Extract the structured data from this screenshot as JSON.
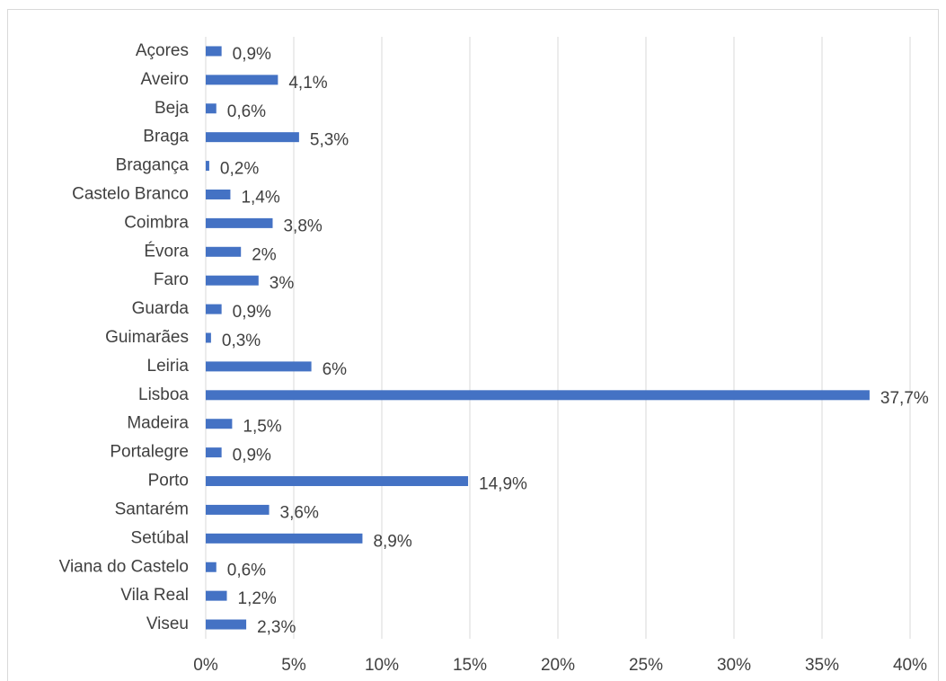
{
  "chart_data": {
    "type": "bar",
    "orientation": "horizontal",
    "categories": [
      "Açores",
      "Aveiro",
      "Beja",
      "Braga",
      "Bragança",
      "Castelo Branco",
      "Coimbra",
      "Évora",
      "Faro",
      "Guarda",
      "Guimarães",
      "Leiria",
      "Lisboa",
      "Madeira",
      "Portalegre",
      "Porto",
      "Santarém",
      "Setúbal",
      "Viana do Castelo",
      "Vila Real",
      "Viseu"
    ],
    "values": [
      0.9,
      4.1,
      0.6,
      5.3,
      0.2,
      1.4,
      3.8,
      2,
      3,
      0.9,
      0.3,
      6,
      37.7,
      1.5,
      0.9,
      14.9,
      3.6,
      8.9,
      0.6,
      1.2,
      2.3
    ],
    "value_labels": [
      "0,9%",
      "4,1%",
      "0,6%",
      "5,3%",
      "0,2%",
      "1,4%",
      "3,8%",
      "2%",
      "3%",
      "0,9%",
      "0,3%",
      "6%",
      "37,7%",
      "1,5%",
      "0,9%",
      "14,9%",
      "3,6%",
      "8,9%",
      "0,6%",
      "1,2%",
      "2,3%"
    ],
    "color": "#4472c4",
    "xlim": [
      0,
      40
    ],
    "xticks": [
      {
        "value": 0,
        "label": "0%"
      },
      {
        "value": 5,
        "label": "5%"
      },
      {
        "value": 10,
        "label": "10%"
      },
      {
        "value": 15,
        "label": "15%"
      },
      {
        "value": 20,
        "label": "20%"
      },
      {
        "value": 25,
        "label": "25%"
      },
      {
        "value": 30,
        "label": "30%"
      },
      {
        "value": 35,
        "label": "35%"
      },
      {
        "value": 40,
        "label": "40%"
      }
    ],
    "grid": true
  }
}
